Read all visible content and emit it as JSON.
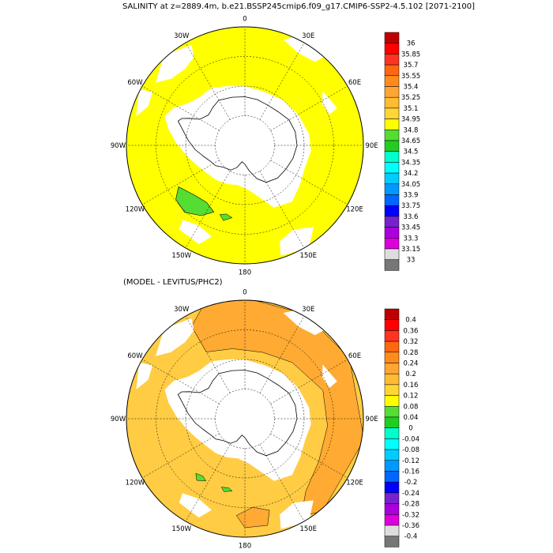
{
  "page": {
    "title": "SALINITY at z=2889.4m, b.e21.BSSP245cmip6.f09_g17.CMIP6-SSP2-4.5.102 [2071-2100]",
    "subtitle": "(MODEL - LEVITUS/PHC2)"
  },
  "colors": {
    "salinity_fill": "#ffff00",
    "salinity_low": "#55dd33",
    "land_mask": "#ffffff",
    "diff_fill": "#ffcc44",
    "diff_high": "#ffaa33",
    "diff_low": "#55dd33"
  },
  "chart_data": [
    {
      "type": "heatmap",
      "title": "SALINITY at z=2889.4m, b.e21.BSSP245cmip6.f09_g17.CMIP6-SSP2-4.5.102 [2071-2100]",
      "projection": "south-polar-stereographic",
      "longitude_labels": [
        "0",
        "30E",
        "60E",
        "90E",
        "120E",
        "150E",
        "180",
        "150W",
        "120W",
        "90W",
        "60W",
        "30W"
      ],
      "colorbar": {
        "labels": [
          "36",
          "35.85",
          "35.7",
          "35.55",
          "35.4",
          "35.25",
          "35.1",
          "34.95",
          "34.8",
          "34.65",
          "34.5",
          "34.35",
          "34.2",
          "34.05",
          "33.9",
          "33.75",
          "33.6",
          "33.45",
          "33.3",
          "33.15",
          "33"
        ],
        "colors": [
          "#c00000",
          "#ff0000",
          "#ff3322",
          "#ff6611",
          "#ff8c1a",
          "#ffa533",
          "#ffbb33",
          "#ffd633",
          "#ffff00",
          "#55dd33",
          "#22cc22",
          "#00ffcc",
          "#00ffff",
          "#00ccff",
          "#0099ff",
          "#0066ff",
          "#0000ff",
          "#7722cc",
          "#aa00dd",
          "#dd00dd",
          "#dddddd",
          "#777777"
        ]
      }
    },
    {
      "type": "heatmap",
      "title": "(MODEL - LEVITUS/PHC2)",
      "projection": "south-polar-stereographic",
      "longitude_labels": [
        "0",
        "30E",
        "60E",
        "90E",
        "120E",
        "150E",
        "180",
        "150W",
        "120W",
        "90W",
        "60W",
        "30W"
      ],
      "colorbar": {
        "labels": [
          "0.4",
          "0.36",
          "0.32",
          "0.28",
          "0.24",
          "0.2",
          "0.16",
          "0.12",
          "0.08",
          "0.04",
          "0",
          "-0.04",
          "-0.08",
          "-0.12",
          "-0.16",
          "-0.2",
          "-0.24",
          "-0.28",
          "-0.32",
          "-0.36",
          "-0.4"
        ],
        "colors": [
          "#c00000",
          "#ff0000",
          "#ff3322",
          "#ff6611",
          "#ff8c1a",
          "#ffa533",
          "#ffbb33",
          "#ffd633",
          "#ffff00",
          "#55dd33",
          "#22cc22",
          "#00ffcc",
          "#00ffff",
          "#00ccff",
          "#0099ff",
          "#0066ff",
          "#0000ff",
          "#7722cc",
          "#aa00dd",
          "#dd00dd",
          "#dddddd",
          "#777777"
        ]
      }
    }
  ]
}
